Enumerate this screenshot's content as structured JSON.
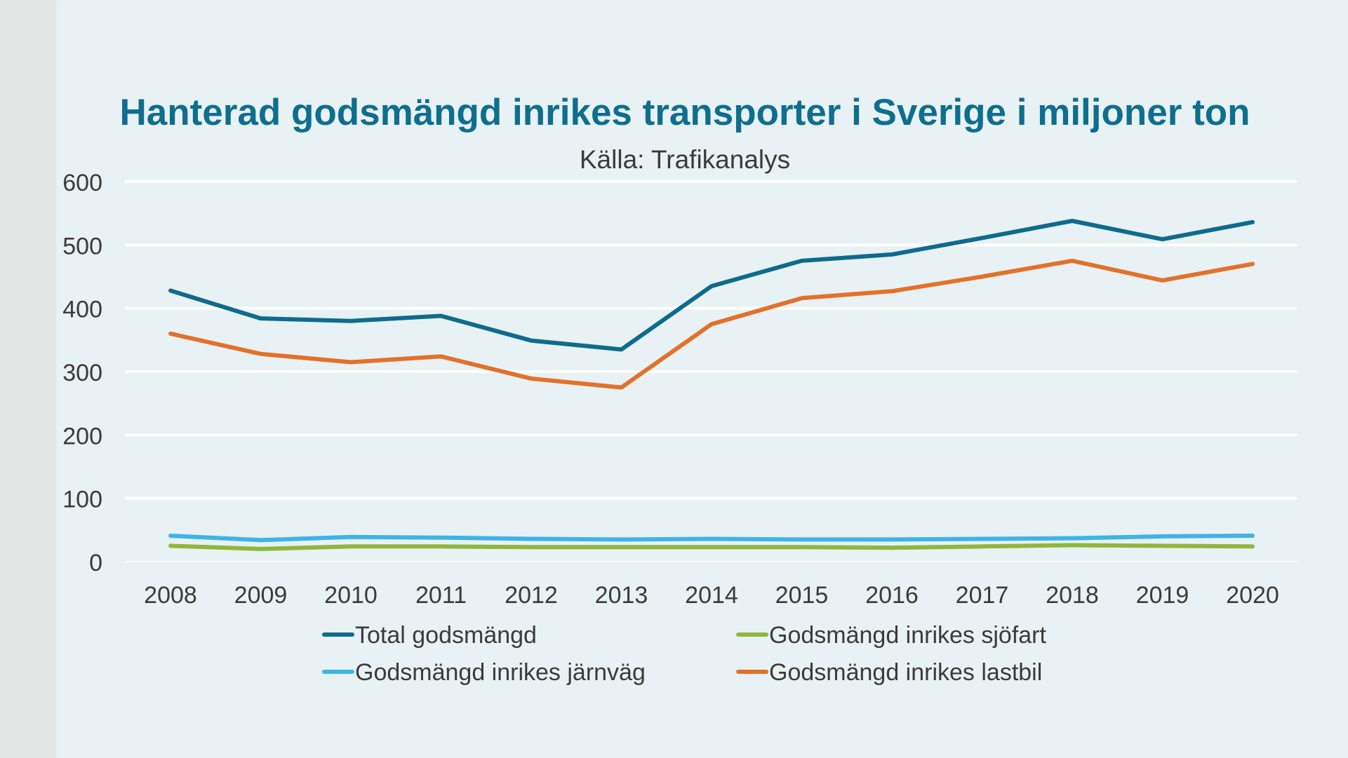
{
  "chart_data": {
    "type": "line",
    "title": "Hanterad godsmängd inrikes transporter i Sverige i miljoner ton",
    "subtitle": "Källa: Trafikanalys",
    "xlabel": "",
    "ylabel": "",
    "ylim": [
      0,
      600
    ],
    "yticks": [
      "0",
      "100",
      "200",
      "300",
      "400",
      "500",
      "600"
    ],
    "grid": true,
    "legend_position": "bottom",
    "categories": [
      "2008",
      "2009",
      "2010",
      "2011",
      "2012",
      "2013",
      "2014",
      "2015",
      "2016",
      "2017",
      "2018",
      "2019",
      "2020"
    ],
    "series": [
      {
        "name": "Total godsmängd",
        "color": "#0e6b8c",
        "values": [
          428,
          384,
          380,
          388,
          349,
          335,
          435,
          475,
          485,
          511,
          538,
          509,
          536
        ]
      },
      {
        "name": "Godsmängd inrikes sjöfart",
        "color": "#8db73e",
        "values": [
          25,
          20,
          24,
          24,
          23,
          23,
          23,
          23,
          22,
          24,
          26,
          25,
          24
        ]
      },
      {
        "name": "Godsmängd inrikes järnväg",
        "color": "#3db4e6",
        "values": [
          41,
          34,
          39,
          38,
          36,
          35,
          36,
          35,
          35,
          36,
          37,
          40,
          41
        ]
      },
      {
        "name": "Godsmängd inrikes lastbil",
        "color": "#e2712a",
        "values": [
          360,
          328,
          315,
          324,
          289,
          275,
          375,
          416,
          427,
          450,
          475,
          444,
          470
        ]
      }
    ]
  }
}
